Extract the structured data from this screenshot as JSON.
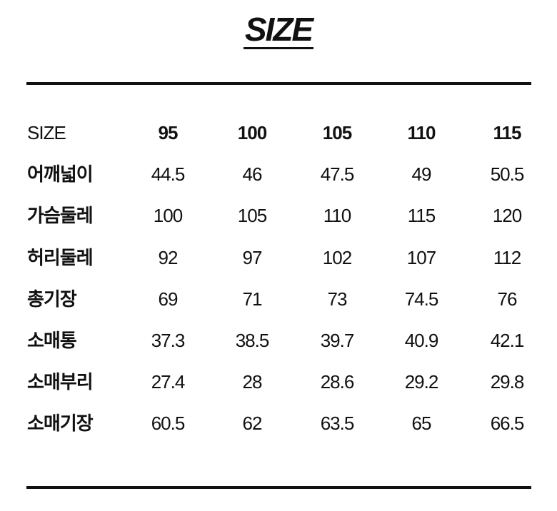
{
  "title": "SIZE",
  "table": {
    "header": {
      "label": "SIZE",
      "sizes": [
        "95",
        "100",
        "105",
        "110",
        "115"
      ]
    },
    "rows": [
      {
        "label": "어깨넓이",
        "values": [
          "44.5",
          "46",
          "47.5",
          "49",
          "50.5"
        ]
      },
      {
        "label": "가슴둘레",
        "values": [
          "100",
          "105",
          "110",
          "115",
          "120"
        ]
      },
      {
        "label": "허리둘레",
        "values": [
          "92",
          "97",
          "102",
          "107",
          "112"
        ]
      },
      {
        "label": "총기장",
        "values": [
          "69",
          "71",
          "73",
          "74.5",
          "76"
        ]
      },
      {
        "label": "소매통",
        "values": [
          "37.3",
          "38.5",
          "39.7",
          "40.9",
          "42.1"
        ]
      },
      {
        "label": "소매부리",
        "values": [
          "27.4",
          "28",
          "28.6",
          "29.2",
          "29.8"
        ]
      },
      {
        "label": "소매기장",
        "values": [
          "60.5",
          "62",
          "63.5",
          "65",
          "66.5"
        ]
      }
    ]
  }
}
